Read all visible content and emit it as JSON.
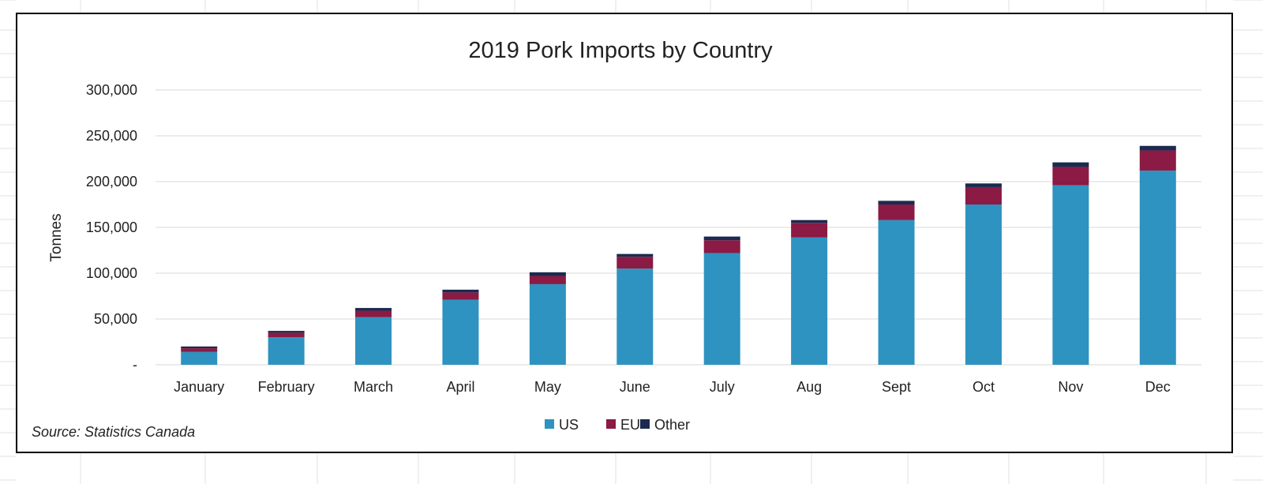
{
  "chart_data": {
    "type": "bar",
    "stacked": true,
    "title": "2019 Pork Imports by Country",
    "ylabel": "Tonnes",
    "xlabel": "",
    "ylim": [
      0,
      300000
    ],
    "yticks": [
      0,
      50000,
      100000,
      150000,
      200000,
      250000,
      300000
    ],
    "ytick_labels": [
      "-",
      "50,000",
      "100,000",
      "150,000",
      "200,000",
      "250,000",
      "300,000"
    ],
    "grid": true,
    "legend": "bottom-center",
    "categories": [
      "January",
      "February",
      "March",
      "April",
      "May",
      "June",
      "July",
      "Aug",
      "Sept",
      "Oct",
      "Nov",
      "Dec"
    ],
    "series": [
      {
        "name": "US",
        "color": "#2e93c0",
        "values": [
          14000,
          30000,
          52000,
          71000,
          88000,
          105000,
          122000,
          139000,
          158000,
          175000,
          196000,
          212000
        ]
      },
      {
        "name": "EU",
        "color": "#8b1a44",
        "values": [
          4000,
          5000,
          7000,
          8000,
          9000,
          13000,
          14000,
          16000,
          17000,
          19000,
          20000,
          22000
        ]
      },
      {
        "name": "Other",
        "color": "#1b2a4e",
        "values": [
          2000,
          2000,
          3000,
          3000,
          4000,
          3000,
          4000,
          3000,
          4000,
          4000,
          5000,
          5000
        ]
      }
    ],
    "source": "Source: Statistics Canada"
  }
}
